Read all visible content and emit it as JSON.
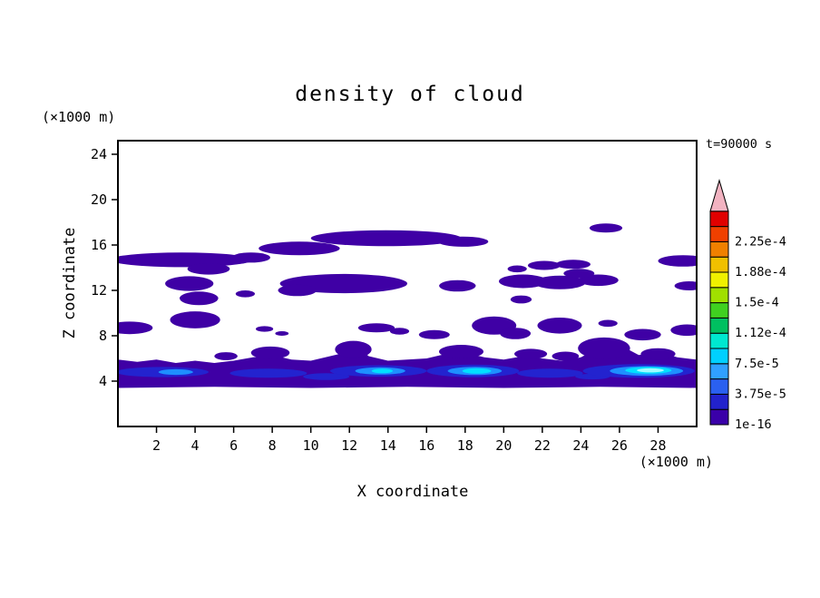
{
  "page": {
    "background": "#ffffff"
  },
  "chart_data": {
    "type": "heatmap",
    "variant": "filled-contour",
    "title": "density of cloud",
    "xlabel": "X coordinate",
    "ylabel": "Z coordinate",
    "x_unit_label": "(×1000 m)",
    "y_unit_label": "(×1000 m)",
    "time_label": "t=90000 s",
    "xlim": [
      0,
      30
    ],
    "ylim": [
      0,
      25.2
    ],
    "xticks": [
      2,
      4,
      6,
      8,
      10,
      12,
      14,
      16,
      18,
      20,
      22,
      24,
      26,
      28
    ],
    "yticks": [
      4,
      8,
      12,
      16,
      20,
      24
    ],
    "levels": [
      "1e-16",
      "3.75e-5",
      "7.5e-5",
      "1.12e-4",
      "1.5e-4",
      "1.88e-4",
      "2.25e-4"
    ],
    "legend_position": "right",
    "grid": false,
    "region_colors": [
      "#3f00a5",
      "#2323cf",
      "#1e8fff",
      "#00e0ff",
      "#9efcff"
    ],
    "colorbar": {
      "colors": [
        "#3a00a8",
        "#2222cc",
        "#2a60f0",
        "#30a0ff",
        "#00d0ff",
        "#00e8d0",
        "#00c060",
        "#40d020",
        "#a0e000",
        "#f0f000",
        "#f0c000",
        "#f08000",
        "#f04000",
        "#e00000"
      ],
      "labels": [
        {
          "text": "1e-16",
          "pos": 0
        },
        {
          "text": "3.75e-5",
          "pos": 2
        },
        {
          "text": "7.5e-5",
          "pos": 4
        },
        {
          "text": "1.12e-4",
          "pos": 6
        },
        {
          "text": "1.5e-4",
          "pos": 8
        },
        {
          "text": "1.88e-4",
          "pos": 10
        },
        {
          "text": "2.25e-4",
          "pos": 12
        }
      ],
      "arrow_color": "#f2b3c1"
    },
    "regions": [
      {
        "t": "p",
        "l": 0,
        "pts": [
          [
            0,
            5.9
          ],
          [
            1,
            5.7
          ],
          [
            2,
            5.9
          ],
          [
            3,
            5.6
          ],
          [
            4,
            5.8
          ],
          [
            5,
            5.6
          ],
          [
            6,
            5.8
          ],
          [
            7,
            6.1
          ],
          [
            8,
            6.3
          ],
          [
            9,
            5.9
          ],
          [
            10,
            5.8
          ],
          [
            11,
            6.2
          ],
          [
            12,
            6.6
          ],
          [
            12.5,
            6.9
          ],
          [
            13,
            6.2
          ],
          [
            14,
            5.8
          ],
          [
            15,
            5.9
          ],
          [
            16,
            6.0
          ],
          [
            17,
            6.4
          ],
          [
            18,
            6.5
          ],
          [
            19,
            6.1
          ],
          [
            20,
            5.9
          ],
          [
            21,
            6.2
          ],
          [
            22,
            6.0
          ],
          [
            23,
            5.8
          ],
          [
            24,
            6.1
          ],
          [
            25,
            7.0
          ],
          [
            25.5,
            7.5
          ],
          [
            26,
            7.2
          ],
          [
            27,
            6.3
          ],
          [
            28,
            6.6
          ],
          [
            29,
            6.1
          ],
          [
            30,
            5.9
          ],
          [
            30,
            3.4
          ],
          [
            25,
            3.5
          ],
          [
            20,
            3.4
          ],
          [
            15,
            3.5
          ],
          [
            10,
            3.4
          ],
          [
            5,
            3.5
          ],
          [
            0,
            3.4
          ]
        ]
      },
      {
        "t": "e",
        "l": 0,
        "x": 7.9,
        "y": 6.5,
        "rx": 1.0,
        "ry": 0.55
      },
      {
        "t": "e",
        "l": 0,
        "x": 12.2,
        "y": 6.8,
        "rx": 0.95,
        "ry": 0.75
      },
      {
        "t": "e",
        "l": 0,
        "x": 5.6,
        "y": 6.2,
        "rx": 0.6,
        "ry": 0.35
      },
      {
        "t": "e",
        "l": 0,
        "x": 17.8,
        "y": 6.6,
        "rx": 1.15,
        "ry": 0.6
      },
      {
        "t": "e",
        "l": 0,
        "x": 21.4,
        "y": 6.4,
        "rx": 0.85,
        "ry": 0.45
      },
      {
        "t": "e",
        "l": 0,
        "x": 23.2,
        "y": 6.2,
        "rx": 0.7,
        "ry": 0.4
      },
      {
        "t": "e",
        "l": 0,
        "x": 25.2,
        "y": 6.9,
        "rx": 1.35,
        "ry": 0.95
      },
      {
        "t": "e",
        "l": 0,
        "x": 28.0,
        "y": 6.4,
        "rx": 0.9,
        "ry": 0.5
      },
      {
        "t": "e",
        "l": 0,
        "x": 3.3,
        "y": 14.7,
        "rx": 3.7,
        "ry": 0.65
      },
      {
        "t": "e",
        "l": 0,
        "x": 4.7,
        "y": 13.9,
        "rx": 1.1,
        "ry": 0.5
      },
      {
        "t": "e",
        "l": 0,
        "x": 6.9,
        "y": 14.9,
        "rx": 1.0,
        "ry": 0.45
      },
      {
        "t": "e",
        "l": 0,
        "x": 9.4,
        "y": 15.7,
        "rx": 2.1,
        "ry": 0.6
      },
      {
        "t": "e",
        "l": 0,
        "x": 13.9,
        "y": 16.6,
        "rx": 3.9,
        "ry": 0.7
      },
      {
        "t": "e",
        "l": 0,
        "x": 17.9,
        "y": 16.3,
        "rx": 1.3,
        "ry": 0.45
      },
      {
        "t": "e",
        "l": 0,
        "x": 25.3,
        "y": 17.5,
        "rx": 0.85,
        "ry": 0.4
      },
      {
        "t": "e",
        "l": 0,
        "x": 29.3,
        "y": 14.6,
        "rx": 1.3,
        "ry": 0.5
      },
      {
        "t": "e",
        "l": 0,
        "x": 22.1,
        "y": 14.2,
        "rx": 0.85,
        "ry": 0.4
      },
      {
        "t": "e",
        "l": 0,
        "x": 23.6,
        "y": 14.3,
        "rx": 0.9,
        "ry": 0.4
      },
      {
        "t": "e",
        "l": 0,
        "x": 20.7,
        "y": 13.9,
        "rx": 0.5,
        "ry": 0.3
      },
      {
        "t": "e",
        "l": 0,
        "x": 11.7,
        "y": 12.6,
        "rx": 3.3,
        "ry": 0.85
      },
      {
        "t": "e",
        "l": 0,
        "x": 9.3,
        "y": 12.0,
        "rx": 1.0,
        "ry": 0.5
      },
      {
        "t": "e",
        "l": 0,
        "x": 3.7,
        "y": 12.6,
        "rx": 1.25,
        "ry": 0.65
      },
      {
        "t": "e",
        "l": 0,
        "x": 4.2,
        "y": 11.3,
        "rx": 1.0,
        "ry": 0.6
      },
      {
        "t": "e",
        "l": 0,
        "x": 6.6,
        "y": 11.7,
        "rx": 0.5,
        "ry": 0.3
      },
      {
        "t": "e",
        "l": 0,
        "x": 17.6,
        "y": 12.4,
        "rx": 0.95,
        "ry": 0.5
      },
      {
        "t": "e",
        "l": 0,
        "x": 21.0,
        "y": 12.8,
        "rx": 1.25,
        "ry": 0.6
      },
      {
        "t": "e",
        "l": 0,
        "x": 22.9,
        "y": 12.7,
        "rx": 1.35,
        "ry": 0.6
      },
      {
        "t": "e",
        "l": 0,
        "x": 24.9,
        "y": 12.9,
        "rx": 1.05,
        "ry": 0.5
      },
      {
        "t": "e",
        "l": 0,
        "x": 23.9,
        "y": 13.5,
        "rx": 0.8,
        "ry": 0.4
      },
      {
        "t": "e",
        "l": 0,
        "x": 29.6,
        "y": 12.4,
        "rx": 0.75,
        "ry": 0.4
      },
      {
        "t": "e",
        "l": 0,
        "x": 20.9,
        "y": 11.2,
        "rx": 0.55,
        "ry": 0.35
      },
      {
        "t": "e",
        "l": 0,
        "x": 0.6,
        "y": 8.7,
        "rx": 1.2,
        "ry": 0.55
      },
      {
        "t": "e",
        "l": 0,
        "x": 4.0,
        "y": 9.4,
        "rx": 1.3,
        "ry": 0.75
      },
      {
        "t": "e",
        "l": 0,
        "x": 7.6,
        "y": 8.6,
        "rx": 0.45,
        "ry": 0.25
      },
      {
        "t": "e",
        "l": 0,
        "x": 8.5,
        "y": 8.2,
        "rx": 0.35,
        "ry": 0.2
      },
      {
        "t": "e",
        "l": 0,
        "x": 13.4,
        "y": 8.7,
        "rx": 0.95,
        "ry": 0.4
      },
      {
        "t": "e",
        "l": 0,
        "x": 14.6,
        "y": 8.4,
        "rx": 0.5,
        "ry": 0.3
      },
      {
        "t": "e",
        "l": 0,
        "x": 16.4,
        "y": 8.1,
        "rx": 0.8,
        "ry": 0.4
      },
      {
        "t": "e",
        "l": 0,
        "x": 19.5,
        "y": 8.9,
        "rx": 1.15,
        "ry": 0.8
      },
      {
        "t": "e",
        "l": 0,
        "x": 20.6,
        "y": 8.2,
        "rx": 0.8,
        "ry": 0.5
      },
      {
        "t": "e",
        "l": 0,
        "x": 22.9,
        "y": 8.9,
        "rx": 1.15,
        "ry": 0.7
      },
      {
        "t": "e",
        "l": 0,
        "x": 25.4,
        "y": 9.1,
        "rx": 0.5,
        "ry": 0.3
      },
      {
        "t": "e",
        "l": 0,
        "x": 27.2,
        "y": 8.1,
        "rx": 0.95,
        "ry": 0.5
      },
      {
        "t": "e",
        "l": 0,
        "x": 29.5,
        "y": 8.5,
        "rx": 0.85,
        "ry": 0.5
      },
      {
        "t": "e",
        "l": 1,
        "x": 2.3,
        "y": 4.8,
        "rx": 2.4,
        "ry": 0.45
      },
      {
        "t": "e",
        "l": 1,
        "x": 7.8,
        "y": 4.7,
        "rx": 2.0,
        "ry": 0.4
      },
      {
        "t": "e",
        "l": 1,
        "x": 10.8,
        "y": 4.4,
        "rx": 1.2,
        "ry": 0.3
      },
      {
        "t": "e",
        "l": 1,
        "x": 13.5,
        "y": 4.9,
        "rx": 2.5,
        "ry": 0.5
      },
      {
        "t": "e",
        "l": 1,
        "x": 18.4,
        "y": 4.9,
        "rx": 2.4,
        "ry": 0.55
      },
      {
        "t": "e",
        "l": 1,
        "x": 22.4,
        "y": 4.7,
        "rx": 1.7,
        "ry": 0.4
      },
      {
        "t": "e",
        "l": 1,
        "x": 24.6,
        "y": 4.4,
        "rx": 0.9,
        "ry": 0.25
      },
      {
        "t": "e",
        "l": 1,
        "x": 27.0,
        "y": 4.9,
        "rx": 2.9,
        "ry": 0.6
      },
      {
        "t": "e",
        "l": 2,
        "x": 3.0,
        "y": 4.8,
        "rx": 0.9,
        "ry": 0.25
      },
      {
        "t": "e",
        "l": 2,
        "x": 13.6,
        "y": 4.9,
        "rx": 1.3,
        "ry": 0.32
      },
      {
        "t": "e",
        "l": 2,
        "x": 18.5,
        "y": 4.9,
        "rx": 1.4,
        "ry": 0.36
      },
      {
        "t": "e",
        "l": 2,
        "x": 27.4,
        "y": 4.9,
        "rx": 1.9,
        "ry": 0.42
      },
      {
        "t": "e",
        "l": 3,
        "x": 13.7,
        "y": 4.9,
        "rx": 0.55,
        "ry": 0.2
      },
      {
        "t": "e",
        "l": 3,
        "x": 18.6,
        "y": 4.9,
        "rx": 0.75,
        "ry": 0.24
      },
      {
        "t": "e",
        "l": 3,
        "x": 27.5,
        "y": 4.95,
        "rx": 1.2,
        "ry": 0.3
      },
      {
        "t": "e",
        "l": 4,
        "x": 27.6,
        "y": 4.95,
        "rx": 0.7,
        "ry": 0.18
      }
    ]
  }
}
